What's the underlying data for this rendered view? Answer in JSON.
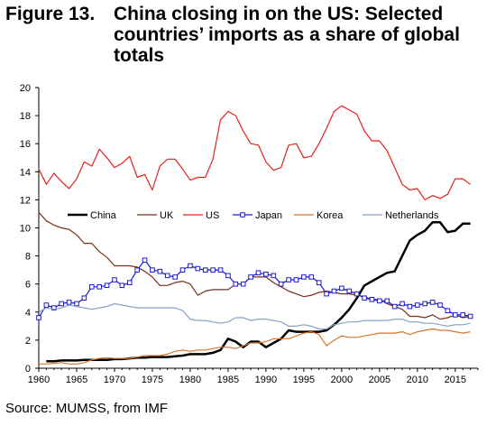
{
  "figure": {
    "label": "Figure 13.",
    "title_line1": "China closing in on the US: Selected",
    "title_line2": "countries’ imports as a share of global",
    "title_line3": "totals"
  },
  "source": "Source: MUMSS, from IMF",
  "chart_data": {
    "type": "line",
    "title": "China closing in on the US: Selected countries’ imports as a share of global totals",
    "xlabel": "",
    "ylabel": "",
    "xlim": [
      1960,
      2018
    ],
    "ylim": [
      0,
      20
    ],
    "xticks": [
      1960,
      1965,
      1970,
      1975,
      1980,
      1985,
      1990,
      1995,
      2000,
      2005,
      2010,
      2015
    ],
    "yticks": [
      0,
      2,
      4,
      6,
      8,
      10,
      12,
      14,
      16,
      18,
      20
    ],
    "grid": false,
    "legend_position": "center",
    "series": [
      {
        "name": "China",
        "color": "#000000",
        "marker": "none",
        "width": 2.5,
        "x": [
          1961,
          1962,
          1963,
          1964,
          1965,
          1966,
          1967,
          1968,
          1969,
          1970,
          1971,
          1972,
          1973,
          1974,
          1975,
          1976,
          1977,
          1978,
          1979,
          1980,
          1981,
          1982,
          1983,
          1984,
          1985,
          1986,
          1987,
          1988,
          1989,
          1990,
          1991,
          1992,
          1993,
          1994,
          1995,
          1996,
          1997,
          1998,
          1999,
          2000,
          2001,
          2002,
          2003,
          2004,
          2005,
          2006,
          2007,
          2008,
          2009,
          2010,
          2011,
          2012,
          2013,
          2014,
          2015,
          2016,
          2017
        ],
        "values": [
          0.5,
          0.5,
          0.55,
          0.55,
          0.55,
          0.6,
          0.6,
          0.6,
          0.6,
          0.65,
          0.65,
          0.7,
          0.75,
          0.75,
          0.8,
          0.8,
          0.8,
          0.85,
          0.9,
          1.0,
          1.0,
          1.0,
          1.1,
          1.3,
          2.1,
          1.9,
          1.5,
          1.9,
          1.9,
          1.5,
          1.8,
          2.1,
          2.7,
          2.6,
          2.6,
          2.6,
          2.6,
          2.7,
          3.1,
          3.6,
          4.2,
          5.0,
          5.9,
          6.2,
          6.5,
          6.8,
          6.9,
          8.0,
          9.1,
          9.5,
          9.8,
          10.4,
          10.4,
          9.7,
          9.8,
          10.3,
          10.3
        ]
      },
      {
        "name": "UK",
        "color": "#7a2f1c",
        "marker": "none",
        "width": 1.2,
        "x": [
          1960,
          1961,
          1962,
          1963,
          1964,
          1965,
          1966,
          1967,
          1968,
          1969,
          1970,
          1971,
          1972,
          1973,
          1974,
          1975,
          1976,
          1977,
          1978,
          1979,
          1980,
          1981,
          1982,
          1983,
          1984,
          1985,
          1986,
          1987,
          1988,
          1989,
          1990,
          1991,
          1992,
          1993,
          1994,
          1995,
          1996,
          1997,
          1998,
          1999,
          2000,
          2001,
          2002,
          2003,
          2004,
          2005,
          2006,
          2007,
          2008,
          2009,
          2010,
          2011,
          2012,
          2013,
          2014,
          2015,
          2016,
          2017
        ],
        "values": [
          11.1,
          10.5,
          10.2,
          10.0,
          9.9,
          9.5,
          8.9,
          8.9,
          8.3,
          7.9,
          7.3,
          7.3,
          7.3,
          7.2,
          6.9,
          6.5,
          5.9,
          5.9,
          6.1,
          6.2,
          6.0,
          5.2,
          5.5,
          5.6,
          5.6,
          5.6,
          6.0,
          6.0,
          6.5,
          6.5,
          6.5,
          6.1,
          5.8,
          5.5,
          5.3,
          5.1,
          5.2,
          5.4,
          5.5,
          5.4,
          5.3,
          5.3,
          5.2,
          5.1,
          4.9,
          4.9,
          4.6,
          4.4,
          4.2,
          3.7,
          3.7,
          3.6,
          3.8,
          3.5,
          3.6,
          3.8,
          3.6,
          3.7
        ]
      },
      {
        "name": "US",
        "color": "#e8211c",
        "marker": "none",
        "width": 1.2,
        "x": [
          1960,
          1961,
          1962,
          1963,
          1964,
          1965,
          1966,
          1967,
          1968,
          1969,
          1970,
          1971,
          1972,
          1973,
          1974,
          1975,
          1976,
          1977,
          1978,
          1979,
          1980,
          1981,
          1982,
          1983,
          1984,
          1985,
          1986,
          1987,
          1988,
          1989,
          1990,
          1991,
          1992,
          1993,
          1994,
          1995,
          1996,
          1997,
          1998,
          1999,
          2000,
          2001,
          2002,
          2003,
          2004,
          2005,
          2006,
          2007,
          2008,
          2009,
          2010,
          2011,
          2012,
          2013,
          2014,
          2015,
          2016,
          2017
        ],
        "values": [
          14.2,
          13.1,
          13.9,
          13.3,
          12.8,
          13.5,
          14.7,
          14.4,
          15.6,
          15.0,
          14.3,
          14.6,
          15.1,
          13.6,
          13.8,
          12.7,
          14.4,
          14.9,
          14.9,
          14.2,
          13.4,
          13.6,
          13.6,
          14.9,
          17.7,
          18.3,
          18.0,
          16.9,
          16.0,
          15.9,
          14.7,
          14.1,
          14.3,
          15.9,
          16.0,
          15.0,
          15.1,
          16.0,
          17.1,
          18.3,
          18.7,
          18.4,
          18.1,
          16.9,
          16.2,
          16.2,
          15.5,
          14.3,
          13.1,
          12.7,
          12.8,
          12.0,
          12.3,
          12.1,
          12.4,
          13.5,
          13.5,
          13.1
        ]
      },
      {
        "name": "Japan",
        "color": "#1a1ad6",
        "marker": "square",
        "width": 1.2,
        "x": [
          1960,
          1961,
          1962,
          1963,
          1964,
          1965,
          1966,
          1967,
          1968,
          1969,
          1970,
          1971,
          1972,
          1973,
          1974,
          1975,
          1976,
          1977,
          1978,
          1979,
          1980,
          1981,
          1982,
          1983,
          1984,
          1985,
          1986,
          1987,
          1988,
          1989,
          1990,
          1991,
          1992,
          1993,
          1994,
          1995,
          1996,
          1997,
          1998,
          1999,
          2000,
          2001,
          2002,
          2003,
          2004,
          2005,
          2006,
          2007,
          2008,
          2009,
          2010,
          2011,
          2012,
          2013,
          2014,
          2015,
          2016,
          2017
        ],
        "values": [
          3.6,
          4.5,
          4.3,
          4.6,
          4.7,
          4.6,
          5.0,
          5.8,
          5.8,
          5.9,
          6.3,
          5.9,
          6.1,
          7.0,
          7.7,
          7.0,
          6.9,
          6.6,
          6.5,
          7.0,
          7.3,
          7.1,
          7.0,
          7.0,
          7.0,
          6.6,
          6.0,
          6.0,
          6.5,
          6.8,
          6.7,
          6.6,
          6.0,
          6.3,
          6.3,
          6.5,
          6.5,
          6.1,
          5.3,
          5.5,
          5.7,
          5.5,
          5.3,
          5.0,
          4.9,
          4.8,
          4.8,
          4.4,
          4.6,
          4.4,
          4.5,
          4.6,
          4.7,
          4.5,
          4.1,
          3.8,
          3.8,
          3.7
        ]
      },
      {
        "name": "Korea",
        "color": "#d6762c",
        "marker": "none",
        "width": 1.2,
        "x": [
          1960,
          1961,
          1962,
          1963,
          1964,
          1965,
          1966,
          1967,
          1968,
          1969,
          1970,
          1971,
          1972,
          1973,
          1974,
          1975,
          1976,
          1977,
          1978,
          1979,
          1980,
          1981,
          1982,
          1983,
          1984,
          1985,
          1986,
          1987,
          1988,
          1989,
          1990,
          1991,
          1992,
          1993,
          1994,
          1995,
          1996,
          1997,
          1998,
          1999,
          2000,
          2001,
          2002,
          2003,
          2004,
          2005,
          2006,
          2007,
          2008,
          2009,
          2010,
          2011,
          2012,
          2013,
          2014,
          2015,
          2016,
          2017
        ],
        "values": [
          0.3,
          0.3,
          0.35,
          0.4,
          0.3,
          0.3,
          0.4,
          0.6,
          0.7,
          0.75,
          0.7,
          0.7,
          0.7,
          0.8,
          0.9,
          0.9,
          0.9,
          1.0,
          1.2,
          1.3,
          1.2,
          1.3,
          1.3,
          1.4,
          1.5,
          1.5,
          1.4,
          1.6,
          1.8,
          1.8,
          1.9,
          2.1,
          2.1,
          2.1,
          2.3,
          2.5,
          2.6,
          2.4,
          1.6,
          2.0,
          2.3,
          2.2,
          2.2,
          2.3,
          2.4,
          2.5,
          2.5,
          2.5,
          2.6,
          2.4,
          2.6,
          2.7,
          2.8,
          2.7,
          2.7,
          2.6,
          2.5,
          2.6
        ]
      },
      {
        "name": "Netherlands",
        "color": "#8aa0c9",
        "marker": "none",
        "width": 1.2,
        "x": [
          1960,
          1961,
          1962,
          1963,
          1964,
          1965,
          1966,
          1967,
          1968,
          1969,
          1970,
          1971,
          1972,
          1973,
          1974,
          1975,
          1976,
          1977,
          1978,
          1979,
          1980,
          1981,
          1982,
          1983,
          1984,
          1985,
          1986,
          1987,
          1988,
          1989,
          1990,
          1991,
          1992,
          1993,
          1994,
          1995,
          1996,
          1997,
          1998,
          1999,
          2000,
          2001,
          2002,
          2003,
          2004,
          2005,
          2006,
          2007,
          2008,
          2009,
          2010,
          2011,
          2012,
          2013,
          2014,
          2015,
          2016,
          2017
        ],
        "values": [
          4.0,
          4.3,
          4.2,
          4.3,
          4.5,
          4.4,
          4.3,
          4.2,
          4.3,
          4.4,
          4.6,
          4.5,
          4.4,
          4.3,
          4.3,
          4.3,
          4.3,
          4.3,
          4.3,
          4.1,
          3.5,
          3.4,
          3.4,
          3.3,
          3.2,
          3.3,
          3.6,
          3.6,
          3.4,
          3.5,
          3.5,
          3.4,
          3.3,
          3.0,
          3.0,
          3.1,
          3.0,
          2.8,
          2.8,
          3.1,
          3.2,
          3.3,
          3.3,
          3.4,
          3.4,
          3.4,
          3.4,
          3.5,
          3.5,
          3.3,
          3.3,
          3.2,
          3.2,
          3.1,
          3.0,
          3.1,
          3.1,
          3.2
        ]
      }
    ]
  }
}
